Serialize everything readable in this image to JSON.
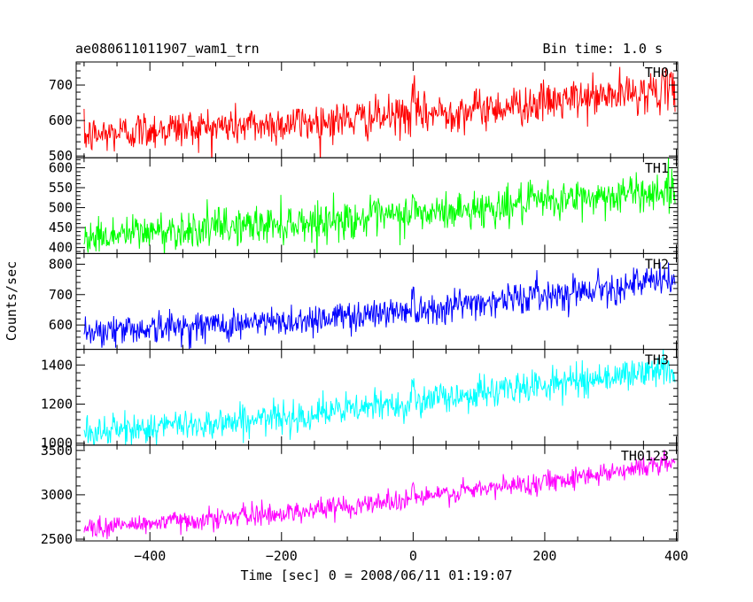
{
  "header": {
    "left_title": "ae080611011907_wam1_trn",
    "right_title": "Bin time: 1.0 s"
  },
  "chart_data": {
    "type": "line",
    "x_label": "Time [sec] 0 = 2008/06/11 01:19:07",
    "y_label": "Counts/sec",
    "x_range": [
      -512,
      402
    ],
    "x_ticks": [
      -400,
      -200,
      0,
      200,
      400
    ],
    "x_tick_labels": [
      "−400",
      "−200",
      "0",
      "200",
      "400"
    ],
    "x_data_range": [
      -500,
      398
    ],
    "bin_time_s": 1.0,
    "panels": [
      {
        "name": "TH0",
        "color": "#ff0000",
        "y_range": [
          495,
          765
        ],
        "y_ticks": [
          500,
          600,
          700
        ],
        "y_tick_labels": [
          "500",
          "600",
          "700"
        ],
        "trend": [
          {
            "x": -500,
            "y": 555
          },
          {
            "x": -400,
            "y": 575
          },
          {
            "x": -200,
            "y": 590
          },
          {
            "x": 0,
            "y": 615
          },
          {
            "x": 200,
            "y": 650
          },
          {
            "x": 400,
            "y": 690
          }
        ],
        "noise_sigma": 28
      },
      {
        "name": "TH1",
        "color": "#00ff00",
        "y_range": [
          385,
          625
        ],
        "y_ticks": [
          400,
          450,
          500,
          550,
          600
        ],
        "y_tick_labels": [
          "400",
          "450",
          "500",
          "550",
          "600"
        ],
        "trend": [
          {
            "x": -500,
            "y": 425
          },
          {
            "x": -400,
            "y": 440
          },
          {
            "x": -200,
            "y": 460
          },
          {
            "x": 0,
            "y": 480
          },
          {
            "x": 200,
            "y": 515
          },
          {
            "x": 400,
            "y": 545
          }
        ],
        "noise_sigma": 24
      },
      {
        "name": "TH2",
        "color": "#0000ff",
        "y_range": [
          520,
          835
        ],
        "y_ticks": [
          600,
          700,
          800
        ],
        "y_tick_labels": [
          "600",
          "700",
          "800"
        ],
        "trend": [
          {
            "x": -500,
            "y": 580
          },
          {
            "x": -400,
            "y": 590
          },
          {
            "x": -200,
            "y": 610
          },
          {
            "x": 0,
            "y": 650
          },
          {
            "x": 200,
            "y": 700
          },
          {
            "x": 400,
            "y": 750
          }
        ],
        "noise_sigma": 26
      },
      {
        "name": "TH3",
        "color": "#00ffff",
        "y_range": [
          990,
          1480
        ],
        "y_ticks": [
          1000,
          1200,
          1400
        ],
        "y_tick_labels": [
          "1000",
          "1200",
          "1400"
        ],
        "trend": [
          {
            "x": -500,
            "y": 1050
          },
          {
            "x": -400,
            "y": 1080
          },
          {
            "x": -200,
            "y": 1130
          },
          {
            "x": 0,
            "y": 1210
          },
          {
            "x": 200,
            "y": 1300
          },
          {
            "x": 400,
            "y": 1380
          }
        ],
        "noise_sigma": 40
      },
      {
        "name": "TH0123",
        "color": "#ff00ff",
        "y_range": [
          2480,
          3560
        ],
        "y_ticks": [
          2500,
          3000,
          3500
        ],
        "y_tick_labels": [
          "2500",
          "3000",
          "3500"
        ],
        "trend": [
          {
            "x": -500,
            "y": 2620
          },
          {
            "x": -400,
            "y": 2680
          },
          {
            "x": -200,
            "y": 2790
          },
          {
            "x": 0,
            "y": 2960
          },
          {
            "x": 200,
            "y": 3150
          },
          {
            "x": 400,
            "y": 3370
          }
        ],
        "noise_sigma": 60
      }
    ]
  }
}
